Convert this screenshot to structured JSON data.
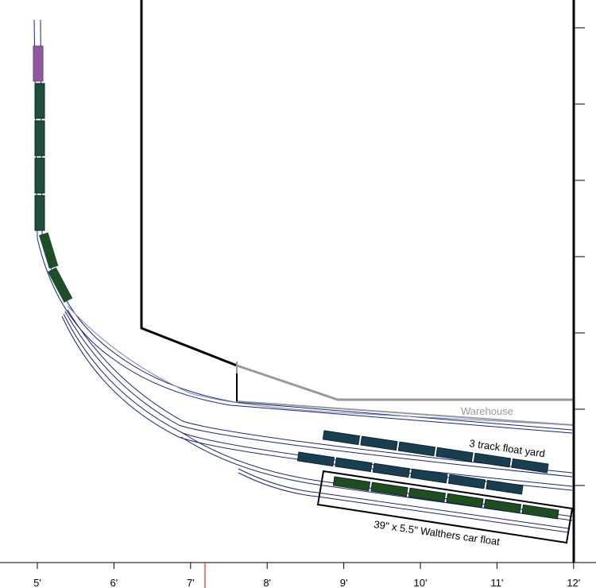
{
  "ruler": {
    "labels": [
      "5'",
      "6'",
      "7'",
      "8'",
      "9'",
      "10'",
      "11'",
      "12'"
    ]
  },
  "labels": {
    "warehouse": "Warehouse",
    "float_yard": "3 track float yard",
    "car_float": "39\" x 5.5\" Walthers car float"
  }
}
